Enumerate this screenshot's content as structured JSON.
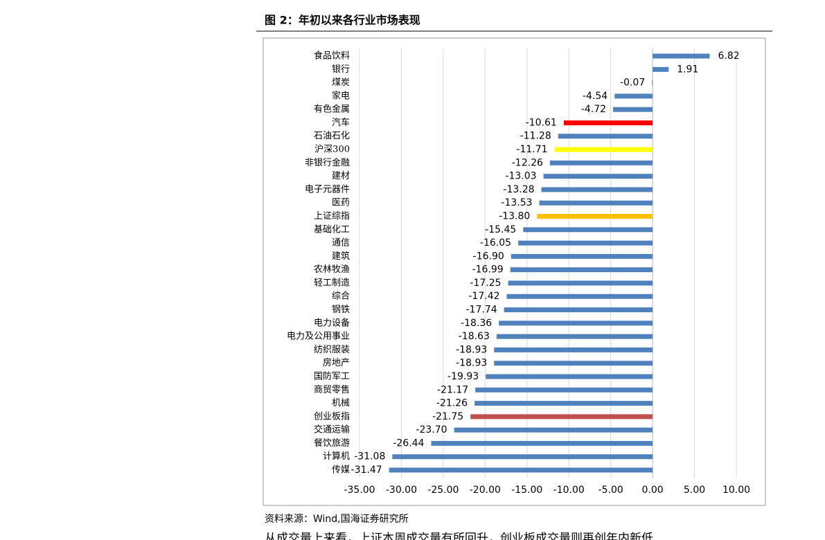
{
  "page": {
    "title": "图 2：年初以来各行业市场表现",
    "source": "资料来源：Wind,国海证券研究所",
    "body_text": "从成交量上来看，上证本周成交量有所回升，创业板成交量则再创年内新低"
  },
  "chart_data": {
    "type": "hbar",
    "categories": [
      "食品饮料",
      "银行",
      "煤炭",
      "家电",
      "有色金属",
      "汽车",
      "石油石化",
      "沪深300",
      "非银行金融",
      "建材",
      "电子元器件",
      "医药",
      "上证综指",
      "基础化工",
      "通信",
      "建筑",
      "农林牧渔",
      "轻工制造",
      "综合",
      "钢铁",
      "电力设备",
      "电力及公用事业",
      "纺织服装",
      "房地产",
      "国防军工",
      "商贸零售",
      "机械",
      "创业板指",
      "交通运输",
      "餐饮旅游",
      "计算机",
      "传媒"
    ],
    "values": [
      6.82,
      1.91,
      -0.07,
      -4.54,
      -4.72,
      -10.61,
      -11.28,
      -11.71,
      -12.26,
      -13.03,
      -13.28,
      -13.53,
      -13.8,
      -15.45,
      -16.05,
      -16.9,
      -16.99,
      -17.25,
      -17.42,
      -17.74,
      -18.36,
      -18.63,
      -18.93,
      -18.93,
      -19.93,
      -21.17,
      -21.26,
      -21.75,
      -23.7,
      -26.44,
      -31.08,
      -31.47
    ],
    "value_labels": [
      "6.82",
      "1.91",
      "-0.07",
      "-4.54",
      "-4.72",
      "-10.61",
      "-11.28",
      "-11.71",
      "-12.26",
      "-13.03",
      "-13.28",
      "-13.53",
      "-13.80",
      "-15.45",
      "-16.05",
      "-16.90",
      "-16.99",
      "-17.25",
      "-17.42",
      "-17.74",
      "-18.36",
      "-18.63",
      "-18.93",
      "-18.93",
      "-19.93",
      "-21.17",
      "-21.26",
      "-21.75",
      "-23.70",
      "-26.44",
      "-31.08",
      "-31.47"
    ],
    "colors": [
      "#4f81bd",
      "#4f81bd",
      "#4f81bd",
      "#4f81bd",
      "#4f81bd",
      "#ff0000",
      "#4f81bd",
      "#ffff00",
      "#4f81bd",
      "#4f81bd",
      "#4f81bd",
      "#4f81bd",
      "#ffc000",
      "#4f81bd",
      "#4f81bd",
      "#4f81bd",
      "#4f81bd",
      "#4f81bd",
      "#4f81bd",
      "#4f81bd",
      "#4f81bd",
      "#4f81bd",
      "#4f81bd",
      "#4f81bd",
      "#4f81bd",
      "#4f81bd",
      "#4f81bd",
      "#c0504d",
      "#4f81bd",
      "#4f81bd",
      "#4f81bd",
      "#4f81bd"
    ],
    "xlim": [
      -35,
      10
    ],
    "xticks": [
      {
        "value": -35,
        "label": "-35.00"
      },
      {
        "value": -30,
        "label": "-30.00"
      },
      {
        "value": -25,
        "label": "-25.00"
      },
      {
        "value": -20,
        "label": "-20.00"
      },
      {
        "value": -15,
        "label": "-15.00"
      },
      {
        "value": -10,
        "label": "-10.00"
      },
      {
        "value": -5,
        "label": "-5.00"
      },
      {
        "value": 0,
        "label": "0.00"
      },
      {
        "value": 5,
        "label": "5.00"
      },
      {
        "value": 10,
        "label": "10.00"
      }
    ],
    "grid": true
  }
}
